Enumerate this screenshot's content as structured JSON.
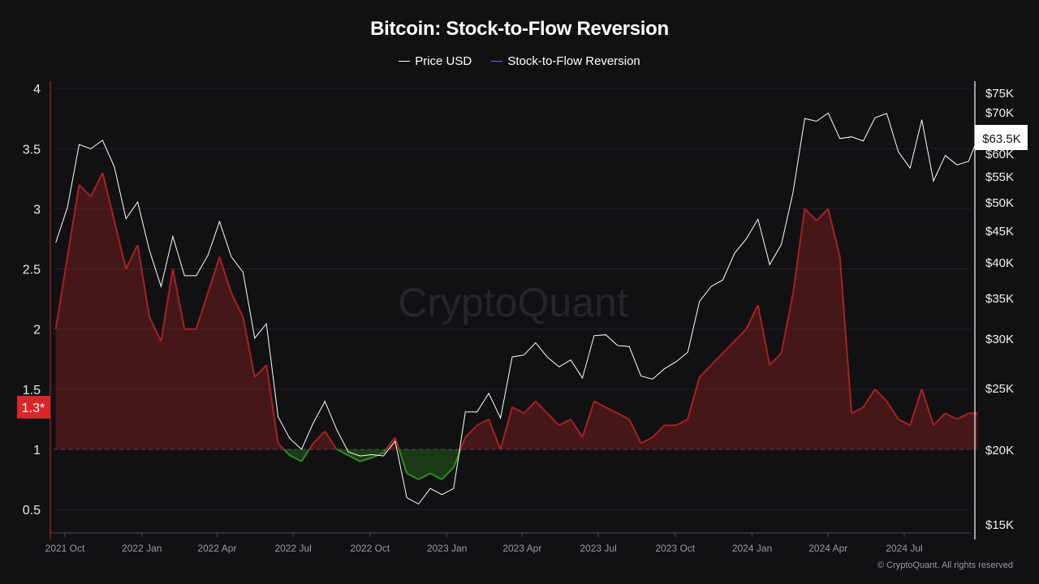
{
  "chart_data": {
    "type": "line",
    "title": "Bitcoin: Stock-to-Flow Reversion",
    "legend_position": "top-center",
    "grid": true,
    "y_left": {
      "ticks": [
        "0.5",
        "1",
        "1.5",
        "2",
        "2.5",
        "3",
        "3.5",
        "4"
      ],
      "range": [
        0.4,
        4.05
      ],
      "reference_line": 1
    },
    "y_right": {
      "scale": "log",
      "ticks": [
        "$15K",
        "$20K",
        "$25K",
        "$30K",
        "$35K",
        "$40K",
        "$45K",
        "$50K",
        "$55K",
        "$60K",
        "$70K",
        "$75K"
      ]
    },
    "x_ticks": [
      "2021 Oct",
      "2022 Jan",
      "2022 Apr",
      "2022 Jul",
      "2022 Oct",
      "2023 Jan",
      "2023 Apr",
      "2023 Jul",
      "2023 Oct",
      "2024 Jan",
      "2024 Apr",
      "2024 Jul"
    ],
    "current_value_badge": "1.3*",
    "current_price_badge": "$63.5K",
    "colors": {
      "price": "#ffffff",
      "s2f_legend": "#6b63e0",
      "above_1": "#a82222",
      "below_1": "#2e8b1c",
      "badge": "#d8262a"
    },
    "x": [
      "2021-09-20",
      "2021-10-04",
      "2021-10-18",
      "2021-11-01",
      "2021-11-15",
      "2021-11-29",
      "2021-12-13",
      "2021-12-27",
      "2022-01-10",
      "2022-01-24",
      "2022-02-07",
      "2022-02-21",
      "2022-03-07",
      "2022-03-21",
      "2022-04-04",
      "2022-04-18",
      "2022-05-02",
      "2022-05-16",
      "2022-05-30",
      "2022-06-13",
      "2022-06-27",
      "2022-07-11",
      "2022-07-25",
      "2022-08-08",
      "2022-08-22",
      "2022-09-05",
      "2022-09-19",
      "2022-10-03",
      "2022-10-17",
      "2022-10-31",
      "2022-11-14",
      "2022-11-28",
      "2022-12-12",
      "2022-12-26",
      "2023-01-09",
      "2023-01-23",
      "2023-02-06",
      "2023-02-20",
      "2023-03-06",
      "2023-03-20",
      "2023-04-03",
      "2023-04-17",
      "2023-05-01",
      "2023-05-15",
      "2023-05-29",
      "2023-06-12",
      "2023-06-26",
      "2023-07-10",
      "2023-07-24",
      "2023-08-07",
      "2023-08-21",
      "2023-09-04",
      "2023-09-18",
      "2023-10-02",
      "2023-10-16",
      "2023-10-30",
      "2023-11-13",
      "2023-11-27",
      "2023-12-11",
      "2023-12-25",
      "2024-01-08",
      "2024-01-22",
      "2024-02-05",
      "2024-02-19",
      "2024-03-04",
      "2024-03-18",
      "2024-04-01",
      "2024-04-15",
      "2024-04-29",
      "2024-05-13",
      "2024-05-27",
      "2024-06-10",
      "2024-06-24",
      "2024-07-08",
      "2024-07-22",
      "2024-08-05",
      "2024-08-19",
      "2024-09-02",
      "2024-09-16",
      "2024-09-27"
    ],
    "series": [
      {
        "name": "Price USD",
        "axis": "right",
        "values": [
          43000,
          49000,
          62000,
          61000,
          63000,
          57000,
          47000,
          50000,
          41800,
          36500,
          44000,
          38000,
          38000,
          41000,
          46500,
          40800,
          38500,
          30000,
          31700,
          22500,
          20800,
          20000,
          22000,
          23800,
          21500,
          19800,
          19500,
          19600,
          19500,
          20600,
          16600,
          16200,
          17200,
          16800,
          17200,
          22900,
          22900,
          24500,
          22400,
          28000,
          28200,
          29500,
          28000,
          27000,
          27700,
          25900,
          30300,
          30400,
          29200,
          29100,
          26100,
          25800,
          26800,
          27500,
          28500,
          34500,
          36500,
          37400,
          41300,
          43600,
          46900,
          39600,
          42700,
          51800,
          68300,
          67600,
          69700,
          63400,
          63800,
          62800,
          68500,
          69600,
          60300,
          56700,
          68000,
          54000,
          59500,
          57400,
          58200,
          63500
        ]
      },
      {
        "name": "Stock-to-Flow Reversion",
        "axis": "left",
        "values": [
          2.0,
          2.6,
          3.2,
          3.1,
          3.3,
          2.9,
          2.5,
          2.7,
          2.1,
          1.9,
          2.5,
          2.0,
          2.0,
          2.3,
          2.6,
          2.3,
          2.1,
          1.6,
          1.7,
          1.05,
          0.95,
          0.9,
          1.05,
          1.15,
          1.0,
          0.95,
          0.9,
          0.93,
          0.97,
          1.1,
          0.8,
          0.75,
          0.8,
          0.75,
          0.85,
          1.1,
          1.2,
          1.25,
          1.0,
          1.35,
          1.3,
          1.4,
          1.3,
          1.2,
          1.25,
          1.1,
          1.4,
          1.35,
          1.3,
          1.25,
          1.05,
          1.1,
          1.2,
          1.2,
          1.25,
          1.6,
          1.7,
          1.8,
          1.9,
          2.0,
          2.2,
          1.7,
          1.8,
          2.3,
          3.0,
          2.9,
          3.0,
          2.6,
          1.3,
          1.35,
          1.5,
          1.4,
          1.25,
          1.2,
          1.5,
          1.2,
          1.3,
          1.25,
          1.3,
          1.3
        ]
      }
    ]
  },
  "legend": {
    "price_label": "Price USD",
    "s2f_label": "Stock-to-Flow Reversion"
  },
  "watermark": "CryptoQuant",
  "copyright": "© CryptoQuant. All rights reserved"
}
